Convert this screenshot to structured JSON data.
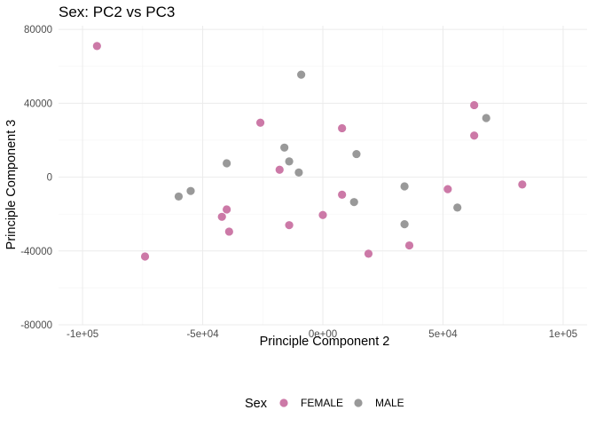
{
  "chart_data": {
    "type": "scatter",
    "title": "Sex: PC2 vs PC3",
    "xlabel": "Principle Component 2",
    "ylabel": "Principle Component 3",
    "xlim": [
      -110000,
      110000
    ],
    "ylim": [
      -80000,
      82000
    ],
    "x_ticks": [
      -100000,
      -50000,
      0,
      50000,
      100000
    ],
    "x_tick_labels": [
      "-1e+05",
      "-5e+04",
      "0e+00",
      "5e+04",
      "1e+05"
    ],
    "y_ticks": [
      -80000,
      -40000,
      0,
      40000,
      80000
    ],
    "y_tick_labels": [
      "-80000",
      "-40000",
      "0",
      "40000",
      "80000"
    ],
    "grid": true,
    "legend": {
      "title": "Sex",
      "position": "bottom"
    },
    "series": [
      {
        "name": "FEMALE",
        "color": "#cc79a7",
        "points": [
          [
            -94000,
            71000
          ],
          [
            -74000,
            -43000
          ],
          [
            -26000,
            29500
          ],
          [
            -18000,
            4000
          ],
          [
            -42000,
            -21500
          ],
          [
            -40000,
            -17500
          ],
          [
            -39000,
            -29500
          ],
          [
            -14000,
            -26000
          ],
          [
            0,
            -20500
          ],
          [
            8000,
            26500
          ],
          [
            8000,
            -9500
          ],
          [
            19000,
            -41500
          ],
          [
            36000,
            -37000
          ],
          [
            52000,
            -6500
          ],
          [
            63000,
            39000
          ],
          [
            63000,
            22500
          ],
          [
            83000,
            -4000
          ]
        ]
      },
      {
        "name": "MALE",
        "color": "#999999",
        "points": [
          [
            -9000,
            55500
          ],
          [
            -16000,
            16000
          ],
          [
            -14000,
            8500
          ],
          [
            -10000,
            2500
          ],
          [
            -40000,
            7500
          ],
          [
            -55000,
            -7500
          ],
          [
            -60000,
            -10500
          ],
          [
            14000,
            12500
          ],
          [
            13000,
            -13500
          ],
          [
            34000,
            -5000
          ],
          [
            34000,
            -25500
          ],
          [
            56000,
            -16500
          ],
          [
            68000,
            32000
          ]
        ]
      }
    ]
  }
}
